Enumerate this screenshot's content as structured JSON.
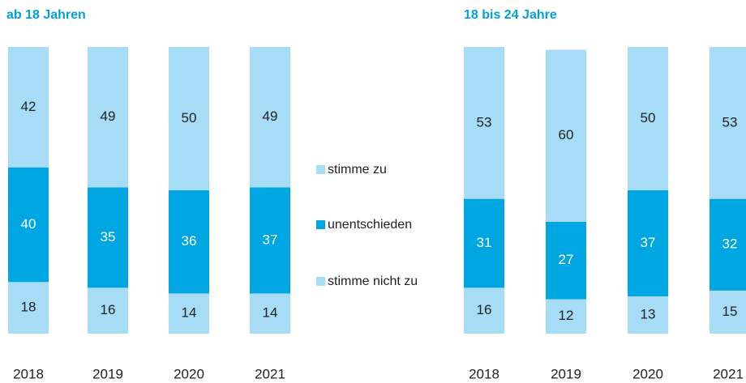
{
  "chart_data": [
    {
      "type": "stacked_bar",
      "title": "ab 18 Jahren",
      "categories": [
        "2018",
        "2019",
        "2020",
        "2021"
      ],
      "series": [
        {
          "name": "stimme nicht zu",
          "color": "#a6dcf6",
          "values": [
            18,
            16,
            14,
            14
          ]
        },
        {
          "name": "unentschieden",
          "color": "#00a6e2",
          "values": [
            40,
            35,
            36,
            37
          ]
        },
        {
          "name": "stimme zu",
          "color": "#a6dcf6",
          "values": [
            42,
            49,
            50,
            49
          ]
        }
      ],
      "ylim": [
        0,
        100
      ]
    },
    {
      "type": "stacked_bar",
      "title": "18 bis 24 Jahre",
      "categories": [
        "2018",
        "2019",
        "2020",
        "2021"
      ],
      "series": [
        {
          "color": "#a6dcf6",
          "values": [
            16,
            12,
            13,
            15
          ]
        },
        {
          "color": "#00a6e2",
          "values": [
            31,
            27,
            37,
            32
          ]
        },
        {
          "color": "#a6dcf6",
          "values": [
            53,
            60,
            50,
            53
          ]
        }
      ],
      "ylim": [
        0,
        100
      ]
    }
  ]
}
